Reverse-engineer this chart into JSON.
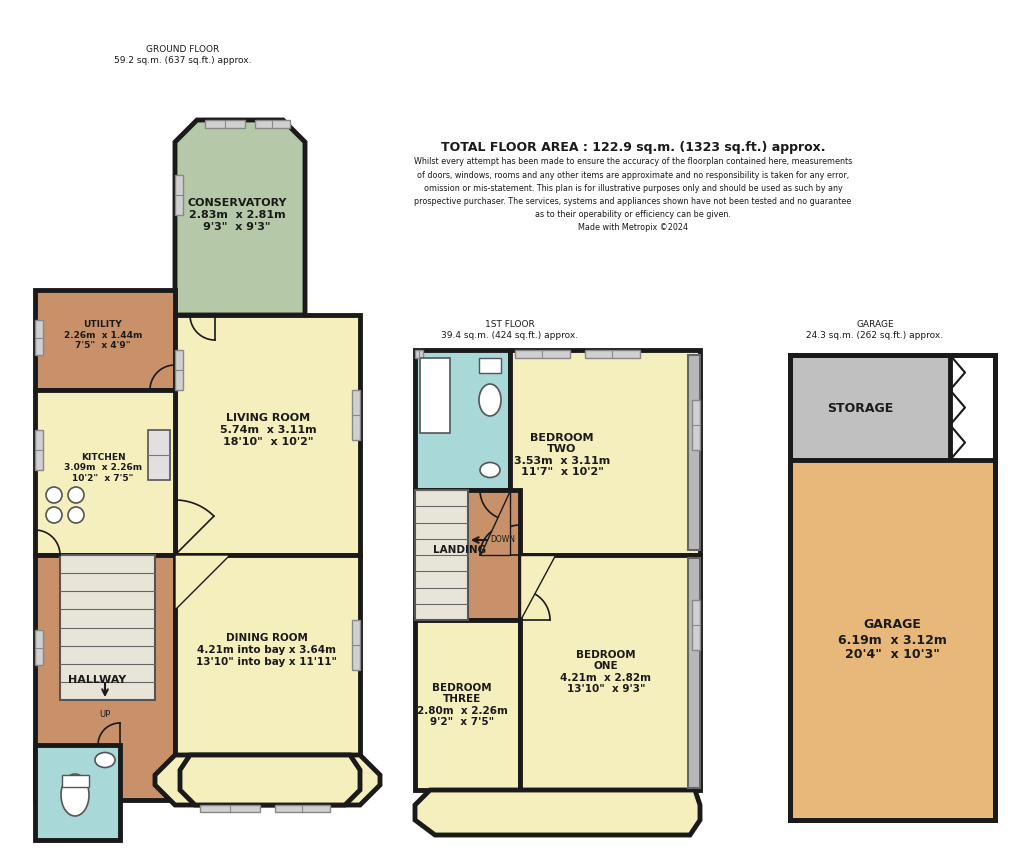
{
  "bg_color": "#ffffff",
  "wall_lw": 3.5,
  "colors": {
    "cream": "#f5efbe",
    "conservatory": "#b5c9a8",
    "utility": "#c8916a",
    "hallway": "#c8916a",
    "bathroom": "#a8d8d8",
    "landing": "#c8916a",
    "storage": "#c0c0c0",
    "garage": "#e8b87a"
  },
  "texts": {
    "gf_title": "GROUND FLOOR\n59.2 sq.m. (637 sq.ft.) approx.",
    "ff_title": "1ST FLOOR\n39.4 sq.m. (424 sq.ft.) approx.",
    "gar_title": "GARAGE\n24.3 sq.m. (262 sq.ft.) approx.",
    "total": "TOTAL FLOOR AREA : 122.9 sq.m. (1323 sq.ft.) approx.",
    "disclaimer": "Whilst every attempt has been made to ensure the accuracy of the floorplan contained here, measurements\nof doors, windows, rooms and any other items are approximate and no responsibility is taken for any error,\nomission or mis-statement. This plan is for illustrative purposes only and should be used as such by any\nprospective purchaser. The services, systems and appliances shown have not been tested and no guarantee\nas to their operability or efficiency can be given.\nMade with Metropix ©2024"
  }
}
